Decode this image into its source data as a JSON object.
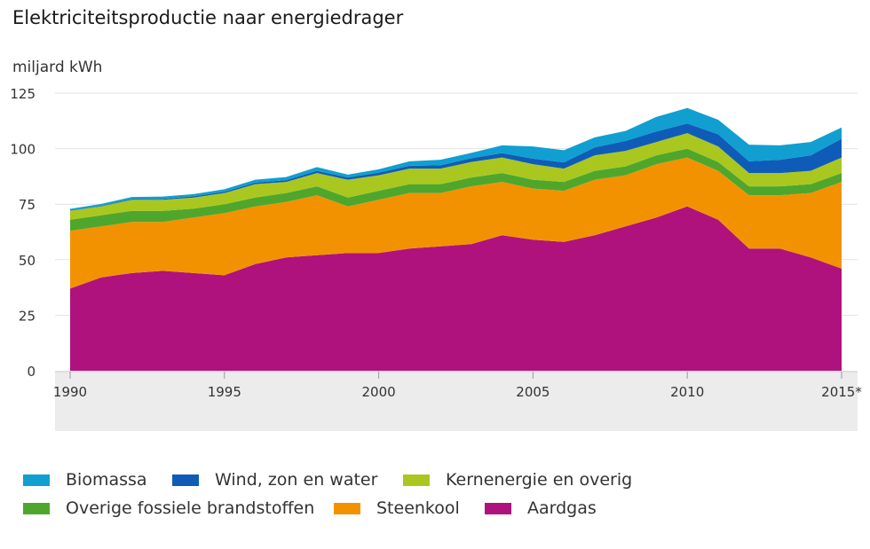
{
  "title": "Elektriciteitsproductie naar energiedrager",
  "unit_label": "miljard kWh",
  "chart_data": {
    "type": "area",
    "stacked": true,
    "title": "Elektriciteitsproductie naar energiedrager",
    "ylabel": "miljard kWh",
    "xlabel": "",
    "ylim": [
      0,
      125
    ],
    "yticks": [
      0,
      25,
      50,
      75,
      100,
      125
    ],
    "x": [
      1990,
      1991,
      1992,
      1993,
      1994,
      1995,
      1996,
      1997,
      1998,
      1999,
      2000,
      2001,
      2002,
      2003,
      2004,
      2005,
      2006,
      2007,
      2008,
      2009,
      2010,
      2011,
      2012,
      2013,
      2014,
      2015
    ],
    "xticks": [
      1990,
      1995,
      2000,
      2005,
      2010,
      2015
    ],
    "xtick_labels": [
      "1990",
      "1995",
      "2000",
      "2005",
      "2010",
      "2015*"
    ],
    "grid": true,
    "legend_position": "bottom",
    "series": [
      {
        "name": "Aardgas",
        "color": "#b0127d",
        "values": [
          37,
          42,
          44,
          45,
          44,
          43,
          48,
          51,
          52,
          53,
          53,
          55,
          56,
          57,
          61,
          59,
          58,
          61,
          65,
          69,
          74,
          68,
          55,
          55,
          51,
          46
        ]
      },
      {
        "name": "Steenkool",
        "color": "#f39200",
        "values": [
          26,
          23,
          23,
          22,
          25,
          28,
          26,
          25,
          27,
          21,
          24,
          25,
          24,
          26,
          24,
          23,
          23,
          25,
          23,
          24,
          22,
          22,
          24,
          24,
          29,
          39
        ]
      },
      {
        "name": "Overige fossiele brandstoffen",
        "color": "#4ea72c",
        "values": [
          5,
          5,
          5,
          5,
          4,
          4,
          4,
          4,
          4,
          4,
          4,
          4,
          4,
          4,
          4,
          4,
          4,
          4,
          4,
          4,
          4,
          4,
          4,
          4,
          4,
          4
        ]
      },
      {
        "name": "Kernenergie en overig",
        "color": "#aac71f",
        "values": [
          4,
          4,
          5,
          5,
          5,
          5,
          6,
          5,
          6,
          8,
          7,
          7,
          7,
          7,
          7,
          7,
          6,
          7,
          7,
          6,
          7,
          7,
          6,
          6,
          6,
          7
        ]
      },
      {
        "name": "Wind, zon en water",
        "color": "#0f5cb8",
        "values": [
          0.1,
          0.2,
          0.3,
          0.4,
          0.5,
          0.6,
          0.7,
          0.8,
          1,
          1,
          1.2,
          1.3,
          1.5,
          1.7,
          2,
          2.5,
          2.8,
          3.6,
          4.5,
          4.8,
          4.3,
          5.5,
          5.3,
          6,
          7,
          8.5
        ]
      },
      {
        "name": "Biomassa",
        "color": "#109fd0",
        "values": [
          0.8,
          0.9,
          0.9,
          1,
          1,
          1.1,
          1.3,
          1.4,
          1.7,
          1.3,
          1.5,
          2,
          2.5,
          2.4,
          3.5,
          5.5,
          5.5,
          4.5,
          4.5,
          6.5,
          7,
          6.5,
          7.5,
          6.5,
          6,
          5
        ]
      }
    ]
  },
  "legend": [
    {
      "label": "Biomassa",
      "color": "#109fd0"
    },
    {
      "label": "Wind, zon en water",
      "color": "#0f5cb8"
    },
    {
      "label": "Kernenergie en overig",
      "color": "#aac71f"
    },
    {
      "label": "Overige fossiele brandstoffen",
      "color": "#4ea72c"
    },
    {
      "label": "Steenkool",
      "color": "#f39200"
    },
    {
      "label": "Aardgas",
      "color": "#b0127d"
    }
  ]
}
